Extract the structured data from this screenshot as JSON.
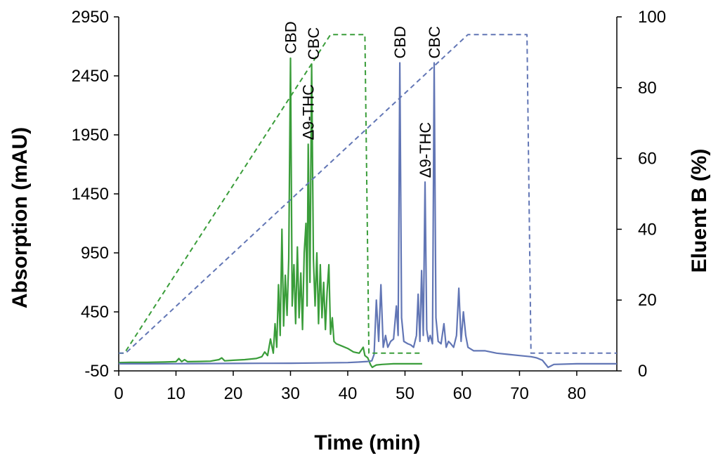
{
  "chart_data": {
    "type": "line",
    "xlabel": "Time (min)",
    "ylabel": "Absorption (mAU)",
    "y2label": "Eluent B (%)",
    "xlim": [
      0,
      87
    ],
    "ylim": [
      -50,
      2950
    ],
    "y2lim": [
      0,
      100
    ],
    "x_ticks": [
      "0",
      "10",
      "20",
      "30",
      "40",
      "50",
      "60",
      "70",
      "80"
    ],
    "y_ticks": [
      "-50",
      "450",
      "950",
      "1450",
      "1950",
      "2450",
      "2950"
    ],
    "y2_ticks": [
      "0",
      "20",
      "40",
      "60",
      "80",
      "100"
    ],
    "colors": {
      "green": "#3a9d3a",
      "blue": "#6276b5"
    },
    "series": [
      {
        "axis": "left",
        "color": "green",
        "style": "solid",
        "x": [
          0,
          2,
          5,
          8,
          10,
          10.5,
          11,
          11.5,
          12,
          14,
          16,
          17.5,
          18,
          18.5,
          20,
          22,
          24,
          25,
          25.5,
          26,
          26.5,
          27,
          27.3,
          27.6,
          27.9,
          28.2,
          28.5,
          28.8,
          29.1,
          29.4,
          29.7,
          30.0,
          30.3,
          30.6,
          30.9,
          31.2,
          31.5,
          31.8,
          32.1,
          32.4,
          32.7,
          32.9,
          33.1,
          33.4,
          33.7,
          34.0,
          34.3,
          34.6,
          34.9,
          35.2,
          35.5,
          35.8,
          36.1,
          36.4,
          36.7,
          37.0,
          37.3,
          37.6,
          38,
          39,
          40,
          41,
          42,
          42.7,
          43.0,
          43.5,
          44.0,
          44.3,
          44.6,
          45,
          46,
          48,
          50,
          52,
          53
        ],
        "y": [
          20,
          22,
          22,
          25,
          28,
          55,
          28,
          45,
          28,
          30,
          32,
          45,
          60,
          35,
          40,
          45,
          55,
          70,
          110,
          80,
          220,
          100,
          350,
          150,
          680,
          250,
          1150,
          330,
          760,
          420,
          900,
          2600,
          500,
          850,
          350,
          1000,
          400,
          780,
          300,
          950,
          1200,
          500,
          1870,
          700,
          2550,
          900,
          500,
          950,
          350,
          850,
          400,
          700,
          300,
          620,
          850,
          260,
          400,
          200,
          180,
          160,
          140,
          110,
          100,
          150,
          80,
          60,
          0,
          -20,
          -10,
          0,
          5,
          10,
          10,
          10,
          10
        ]
      },
      {
        "axis": "left",
        "color": "blue",
        "style": "solid",
        "x": [
          0,
          5,
          10,
          15,
          20,
          25,
          30,
          35,
          40,
          42,
          43.5,
          44.2,
          44.6,
          45.0,
          45.4,
          45.8,
          46.2,
          46.6,
          47,
          47.5,
          48,
          48.5,
          48.8,
          49.1,
          49.4,
          49.8,
          50.5,
          51,
          51.5,
          52,
          52.3,
          52.6,
          52.9,
          53.2,
          53.5,
          53.8,
          54.1,
          54.4,
          54.8,
          55.1,
          55.4,
          55.8,
          56.3,
          56.8,
          57.2,
          57.6,
          58,
          58.5,
          59,
          59.4,
          59.8,
          60.2,
          60.6,
          61,
          62,
          64,
          66,
          68,
          70,
          72,
          73,
          74,
          75,
          76,
          80,
          85,
          87
        ],
        "y": [
          10,
          10,
          11,
          12,
          13,
          14,
          15,
          17,
          20,
          25,
          30,
          35,
          90,
          550,
          200,
          680,
          150,
          250,
          150,
          200,
          220,
          500,
          250,
          2560,
          400,
          200,
          180,
          170,
          150,
          250,
          600,
          200,
          800,
          250,
          1550,
          300,
          200,
          250,
          180,
          2560,
          400,
          200,
          180,
          350,
          150,
          200,
          180,
          150,
          250,
          650,
          200,
          450,
          250,
          150,
          120,
          120,
          100,
          90,
          80,
          70,
          60,
          40,
          -20,
          5,
          10,
          10,
          10
        ]
      },
      {
        "axis": "right",
        "color": "green",
        "style": "dashed",
        "x": [
          0,
          1,
          37,
          43,
          43.7,
          53
        ],
        "y": [
          5,
          5,
          95,
          95,
          5,
          5
        ]
      },
      {
        "axis": "right",
        "color": "blue",
        "style": "dashed",
        "x": [
          0,
          1.2,
          61,
          71.3,
          72,
          87
        ],
        "y": [
          5,
          5,
          95,
          95,
          5,
          5
        ]
      }
    ],
    "annotations": [
      {
        "text": "CBD",
        "x": 30.0,
        "y": 2600,
        "color": "green"
      },
      {
        "text": "Δ9-THC",
        "x": 33.1,
        "y": 1870,
        "color": "green"
      },
      {
        "text": "CBC",
        "x": 34.0,
        "y": 2550,
        "color": "green"
      },
      {
        "text": "CBD",
        "x": 49.1,
        "y": 2560,
        "color": "blue"
      },
      {
        "text": "Δ9-THC",
        "x": 53.5,
        "y": 1550,
        "color": "blue"
      },
      {
        "text": "CBC",
        "x": 55.1,
        "y": 2560,
        "color": "blue"
      }
    ]
  }
}
